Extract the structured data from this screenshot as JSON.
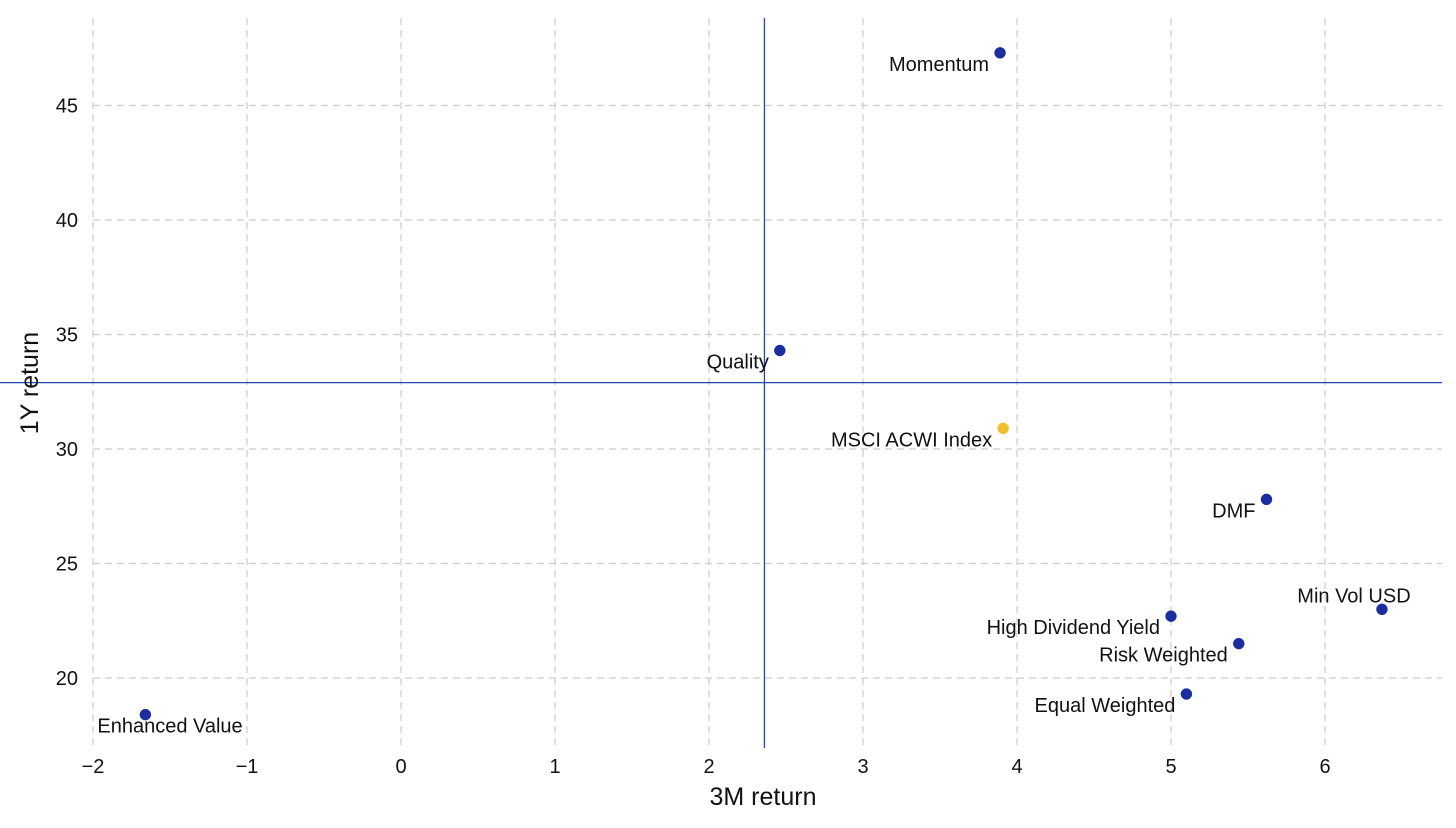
{
  "chart_data": {
    "type": "scatter",
    "xlabel": "3M return",
    "ylabel": "1Y return",
    "xlim": [
      -2,
      6.8
    ],
    "ylim": [
      17,
      48.5
    ],
    "x_ticks": [
      -2,
      -1,
      0,
      1,
      2,
      3,
      4,
      5,
      6
    ],
    "x_tick_labels": [
      "−2",
      "−1",
      "0",
      "1",
      "2",
      "3",
      "4",
      "5",
      "6"
    ],
    "y_ticks": [
      20,
      25,
      30,
      35,
      40,
      45
    ],
    "y_tick_labels": [
      "20",
      "25",
      "30",
      "35",
      "40",
      "45"
    ],
    "grid": true,
    "reference_lines": {
      "x": 2.36,
      "y": 32.9,
      "color": "#2643b4"
    },
    "colors": {
      "factor": "#1a2ea0",
      "benchmark": "#f2bf2a",
      "grid": "#cccccc"
    },
    "points": [
      {
        "label": "Momentum",
        "x": 3.89,
        "y": 47.3,
        "group": "factor",
        "anchor": "left"
      },
      {
        "label": "Quality",
        "x": 2.46,
        "y": 34.3,
        "group": "factor",
        "anchor": "left"
      },
      {
        "label": "MSCI ACWI Index",
        "x": 3.91,
        "y": 30.9,
        "group": "benchmark",
        "anchor": "left"
      },
      {
        "label": "DMF",
        "x": 5.62,
        "y": 27.8,
        "group": "factor",
        "anchor": "left"
      },
      {
        "label": "Min Vol USD",
        "x": 6.37,
        "y": 23.0,
        "group": "factor",
        "anchor": "above"
      },
      {
        "label": "High Dividend Yield",
        "x": 5.0,
        "y": 22.7,
        "group": "factor",
        "anchor": "left"
      },
      {
        "label": "Risk Weighted",
        "x": 5.44,
        "y": 21.5,
        "group": "factor",
        "anchor": "left"
      },
      {
        "label": "Equal Weighted",
        "x": 5.1,
        "y": 19.3,
        "group": "factor",
        "anchor": "left"
      },
      {
        "label": "Enhanced Value",
        "x": -1.66,
        "y": 18.4,
        "group": "factor",
        "anchor": "below"
      }
    ]
  }
}
